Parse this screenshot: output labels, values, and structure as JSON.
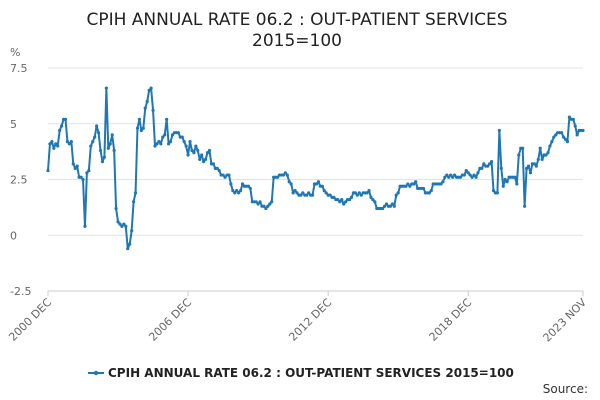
{
  "chart_data": {
    "type": "line",
    "title_lines": [
      "CPIH ANNUAL RATE 06.2 : OUT-PATIENT SERVICES",
      "2015=100"
    ],
    "ylabel": "%",
    "ylim": [
      -2.5,
      7.5
    ],
    "yticks": [
      "7.5",
      "5",
      "2.5",
      "0",
      "-2.5"
    ],
    "ytick_values": [
      7.5,
      5,
      2.5,
      0,
      -2.5
    ],
    "xticks": [
      "2000 DEC",
      "2006 DEC",
      "2012 DEC",
      "2018 DEC",
      "2023 NOV"
    ],
    "xtick_values": [
      2000.917,
      2006.917,
      2012.917,
      2018.917,
      2023.833
    ],
    "xlim": [
      2000.917,
      2023.833
    ],
    "grid": "horizontal",
    "legend_position": "bottom",
    "series": [
      {
        "name": "CPIH ANNUAL RATE 06.2 : OUT-PATIENT SERVICES 2015=100",
        "color": "#1f77b4",
        "points": [
          [
            2000.917,
            2.9
          ],
          [
            2001.0,
            4.1
          ],
          [
            2001.083,
            4.2
          ],
          [
            2001.167,
            3.9
          ],
          [
            2001.25,
            4.1
          ],
          [
            2001.333,
            4.0
          ],
          [
            2001.417,
            4.7
          ],
          [
            2001.5,
            4.9
          ],
          [
            2001.583,
            5.2
          ],
          [
            2001.667,
            5.2
          ],
          [
            2001.75,
            4.2
          ],
          [
            2001.833,
            4.1
          ],
          [
            2001.917,
            4.2
          ],
          [
            2002.0,
            3.2
          ],
          [
            2002.083,
            3.0
          ],
          [
            2002.167,
            3.1
          ],
          [
            2002.25,
            2.6
          ],
          [
            2002.333,
            2.6
          ],
          [
            2002.417,
            2.5
          ],
          [
            2002.5,
            0.4
          ],
          [
            2002.583,
            2.8
          ],
          [
            2002.667,
            2.9
          ],
          [
            2002.75,
            4.0
          ],
          [
            2002.833,
            4.2
          ],
          [
            2002.917,
            4.4
          ],
          [
            2003.0,
            4.9
          ],
          [
            2003.083,
            4.6
          ],
          [
            2003.167,
            3.8
          ],
          [
            2003.25,
            3.3
          ],
          [
            2003.333,
            3.5
          ],
          [
            2003.417,
            6.6
          ],
          [
            2003.5,
            3.9
          ],
          [
            2003.583,
            4.1
          ],
          [
            2003.667,
            4.5
          ],
          [
            2003.75,
            3.8
          ],
          [
            2003.833,
            1.2
          ],
          [
            2003.917,
            0.6
          ],
          [
            2004.0,
            0.5
          ],
          [
            2004.083,
            0.4
          ],
          [
            2004.167,
            0.5
          ],
          [
            2004.25,
            0.4
          ],
          [
            2004.333,
            -0.6
          ],
          [
            2004.417,
            -0.4
          ],
          [
            2004.5,
            0.2
          ],
          [
            2004.583,
            1.5
          ],
          [
            2004.667,
            1.9
          ],
          [
            2004.75,
            4.8
          ],
          [
            2004.833,
            5.2
          ],
          [
            2004.917,
            4.7
          ],
          [
            2005.0,
            4.8
          ],
          [
            2005.083,
            5.7
          ],
          [
            2005.167,
            6.0
          ],
          [
            2005.25,
            6.5
          ],
          [
            2005.333,
            6.6
          ],
          [
            2005.417,
            5.6
          ],
          [
            2005.5,
            4.0
          ],
          [
            2005.583,
            4.1
          ],
          [
            2005.667,
            4.2
          ],
          [
            2005.75,
            4.1
          ],
          [
            2005.833,
            4.4
          ],
          [
            2005.917,
            4.5
          ],
          [
            2006.0,
            5.2
          ],
          [
            2006.083,
            4.1
          ],
          [
            2006.167,
            4.2
          ],
          [
            2006.25,
            4.5
          ],
          [
            2006.333,
            4.6
          ],
          [
            2006.417,
            4.6
          ],
          [
            2006.5,
            4.6
          ],
          [
            2006.583,
            4.4
          ],
          [
            2006.667,
            4.4
          ],
          [
            2006.75,
            4.2
          ],
          [
            2006.833,
            4.0
          ],
          [
            2006.917,
            3.6
          ],
          [
            2007.0,
            4.2
          ],
          [
            2007.083,
            3.8
          ],
          [
            2007.167,
            3.7
          ],
          [
            2007.25,
            4.0
          ],
          [
            2007.333,
            3.8
          ],
          [
            2007.417,
            3.4
          ],
          [
            2007.5,
            3.6
          ],
          [
            2007.583,
            3.3
          ],
          [
            2007.667,
            3.4
          ],
          [
            2007.75,
            3.7
          ],
          [
            2007.833,
            3.8
          ],
          [
            2007.917,
            3.2
          ],
          [
            2008.0,
            3.2
          ],
          [
            2008.083,
            3.0
          ],
          [
            2008.167,
            3.0
          ],
          [
            2008.25,
            2.9
          ],
          [
            2008.333,
            2.7
          ],
          [
            2008.417,
            2.7
          ],
          [
            2008.5,
            2.6
          ],
          [
            2008.583,
            2.7
          ],
          [
            2008.667,
            2.7
          ],
          [
            2008.75,
            2.3
          ],
          [
            2008.833,
            2.0
          ],
          [
            2008.917,
            1.9
          ],
          [
            2009.0,
            2.0
          ],
          [
            2009.083,
            1.9
          ],
          [
            2009.167,
            2.0
          ],
          [
            2009.25,
            2.3
          ],
          [
            2009.333,
            2.2
          ],
          [
            2009.417,
            2.2
          ],
          [
            2009.5,
            2.2
          ],
          [
            2009.583,
            2.1
          ],
          [
            2009.667,
            1.5
          ],
          [
            2009.75,
            1.5
          ],
          [
            2009.833,
            1.5
          ],
          [
            2009.917,
            1.4
          ],
          [
            2010.0,
            1.5
          ],
          [
            2010.083,
            1.3
          ],
          [
            2010.167,
            1.3
          ],
          [
            2010.25,
            1.2
          ],
          [
            2010.333,
            1.3
          ],
          [
            2010.417,
            1.4
          ],
          [
            2010.5,
            1.5
          ],
          [
            2010.583,
            2.6
          ],
          [
            2010.667,
            2.6
          ],
          [
            2010.75,
            2.6
          ],
          [
            2010.833,
            2.7
          ],
          [
            2010.917,
            2.7
          ],
          [
            2011.0,
            2.7
          ],
          [
            2011.083,
            2.8
          ],
          [
            2011.167,
            2.7
          ],
          [
            2011.25,
            2.4
          ],
          [
            2011.333,
            2.3
          ],
          [
            2011.417,
            1.9
          ],
          [
            2011.5,
            2.0
          ],
          [
            2011.583,
            1.9
          ],
          [
            2011.667,
            1.8
          ],
          [
            2011.75,
            1.8
          ],
          [
            2011.833,
            1.9
          ],
          [
            2011.917,
            1.8
          ],
          [
            2012.0,
            1.8
          ],
          [
            2012.083,
            1.9
          ],
          [
            2012.167,
            1.8
          ],
          [
            2012.25,
            1.8
          ],
          [
            2012.333,
            2.3
          ],
          [
            2012.417,
            2.3
          ],
          [
            2012.5,
            2.4
          ],
          [
            2012.583,
            2.2
          ],
          [
            2012.667,
            2.2
          ],
          [
            2012.75,
            2.0
          ],
          [
            2012.833,
            1.9
          ],
          [
            2012.917,
            1.8
          ],
          [
            2013.0,
            1.8
          ],
          [
            2013.083,
            1.7
          ],
          [
            2013.167,
            1.7
          ],
          [
            2013.25,
            1.6
          ],
          [
            2013.333,
            1.6
          ],
          [
            2013.417,
            1.5
          ],
          [
            2013.5,
            1.6
          ],
          [
            2013.583,
            1.4
          ],
          [
            2013.667,
            1.5
          ],
          [
            2013.75,
            1.6
          ],
          [
            2013.833,
            1.6
          ],
          [
            2013.917,
            1.7
          ],
          [
            2014.0,
            1.9
          ],
          [
            2014.083,
            1.9
          ],
          [
            2014.167,
            1.8
          ],
          [
            2014.25,
            1.9
          ],
          [
            2014.333,
            1.8
          ],
          [
            2014.417,
            1.9
          ],
          [
            2014.5,
            1.9
          ],
          [
            2014.583,
            1.9
          ],
          [
            2014.667,
            2.0
          ],
          [
            2014.75,
            1.7
          ],
          [
            2014.833,
            1.6
          ],
          [
            2014.917,
            1.5
          ],
          [
            2015.0,
            1.2
          ],
          [
            2015.083,
            1.2
          ],
          [
            2015.167,
            1.2
          ],
          [
            2015.25,
            1.2
          ],
          [
            2015.333,
            1.3
          ],
          [
            2015.417,
            1.4
          ],
          [
            2015.5,
            1.3
          ],
          [
            2015.583,
            1.3
          ],
          [
            2015.667,
            1.4
          ],
          [
            2015.75,
            1.3
          ],
          [
            2015.833,
            1.8
          ],
          [
            2015.917,
            1.9
          ],
          [
            2016.0,
            2.2
          ],
          [
            2016.083,
            2.2
          ],
          [
            2016.167,
            2.2
          ],
          [
            2016.25,
            2.2
          ],
          [
            2016.333,
            2.3
          ],
          [
            2016.417,
            2.2
          ],
          [
            2016.5,
            2.3
          ],
          [
            2016.583,
            2.3
          ],
          [
            2016.667,
            2.4
          ],
          [
            2016.75,
            2.1
          ],
          [
            2016.833,
            2.1
          ],
          [
            2016.917,
            2.1
          ],
          [
            2017.0,
            2.1
          ],
          [
            2017.083,
            1.9
          ],
          [
            2017.167,
            1.9
          ],
          [
            2017.25,
            1.9
          ],
          [
            2017.333,
            2.0
          ],
          [
            2017.417,
            2.3
          ],
          [
            2017.5,
            2.3
          ],
          [
            2017.583,
            2.3
          ],
          [
            2017.667,
            2.3
          ],
          [
            2017.75,
            2.3
          ],
          [
            2017.833,
            2.4
          ],
          [
            2017.917,
            2.6
          ],
          [
            2018.0,
            2.7
          ],
          [
            2018.083,
            2.6
          ],
          [
            2018.167,
            2.7
          ],
          [
            2018.25,
            2.6
          ],
          [
            2018.333,
            2.7
          ],
          [
            2018.417,
            2.6
          ],
          [
            2018.5,
            2.6
          ],
          [
            2018.583,
            2.6
          ],
          [
            2018.667,
            2.7
          ],
          [
            2018.75,
            2.7
          ],
          [
            2018.833,
            2.9
          ],
          [
            2018.917,
            2.8
          ],
          [
            2019.0,
            2.7
          ],
          [
            2019.083,
            2.6
          ],
          [
            2019.167,
            2.7
          ],
          [
            2019.25,
            2.6
          ],
          [
            2019.333,
            2.8
          ],
          [
            2019.417,
            3.0
          ],
          [
            2019.5,
            3.0
          ],
          [
            2019.583,
            3.2
          ],
          [
            2019.667,
            3.1
          ],
          [
            2019.75,
            3.1
          ],
          [
            2019.833,
            3.2
          ],
          [
            2019.917,
            3.3
          ],
          [
            2020.0,
            2.0
          ],
          [
            2020.083,
            1.9
          ],
          [
            2020.167,
            1.9
          ],
          [
            2020.25,
            4.7
          ],
          [
            2020.333,
            3.0
          ],
          [
            2020.417,
            2.2
          ],
          [
            2020.5,
            2.5
          ],
          [
            2020.583,
            2.4
          ],
          [
            2020.667,
            2.6
          ],
          [
            2020.75,
            2.6
          ],
          [
            2020.833,
            2.6
          ],
          [
            2020.917,
            2.6
          ],
          [
            2021.0,
            2.3
          ],
          [
            2021.083,
            3.6
          ],
          [
            2021.167,
            3.9
          ],
          [
            2021.25,
            3.9
          ],
          [
            2021.333,
            1.3
          ],
          [
            2021.417,
            3.0
          ],
          [
            2021.5,
            3.1
          ],
          [
            2021.583,
            2.8
          ],
          [
            2021.667,
            3.2
          ],
          [
            2021.75,
            3.2
          ],
          [
            2021.833,
            3.1
          ],
          [
            2021.917,
            3.4
          ],
          [
            2022.0,
            3.9
          ],
          [
            2022.083,
            3.4
          ],
          [
            2022.167,
            3.6
          ],
          [
            2022.25,
            3.6
          ],
          [
            2022.333,
            3.7
          ],
          [
            2022.417,
            4.0
          ],
          [
            2022.5,
            4.2
          ],
          [
            2022.583,
            4.4
          ],
          [
            2022.667,
            4.5
          ],
          [
            2022.75,
            4.6
          ],
          [
            2022.833,
            4.6
          ],
          [
            2022.917,
            4.6
          ],
          [
            2023.0,
            4.4
          ],
          [
            2023.083,
            4.3
          ],
          [
            2023.167,
            4.2
          ],
          [
            2023.25,
            5.3
          ],
          [
            2023.333,
            5.2
          ],
          [
            2023.417,
            5.2
          ],
          [
            2023.5,
            4.9
          ],
          [
            2023.583,
            4.5
          ],
          [
            2023.667,
            4.7
          ],
          [
            2023.75,
            4.7
          ],
          [
            2023.833,
            4.7
          ]
        ]
      }
    ],
    "source_label": "Source:"
  }
}
